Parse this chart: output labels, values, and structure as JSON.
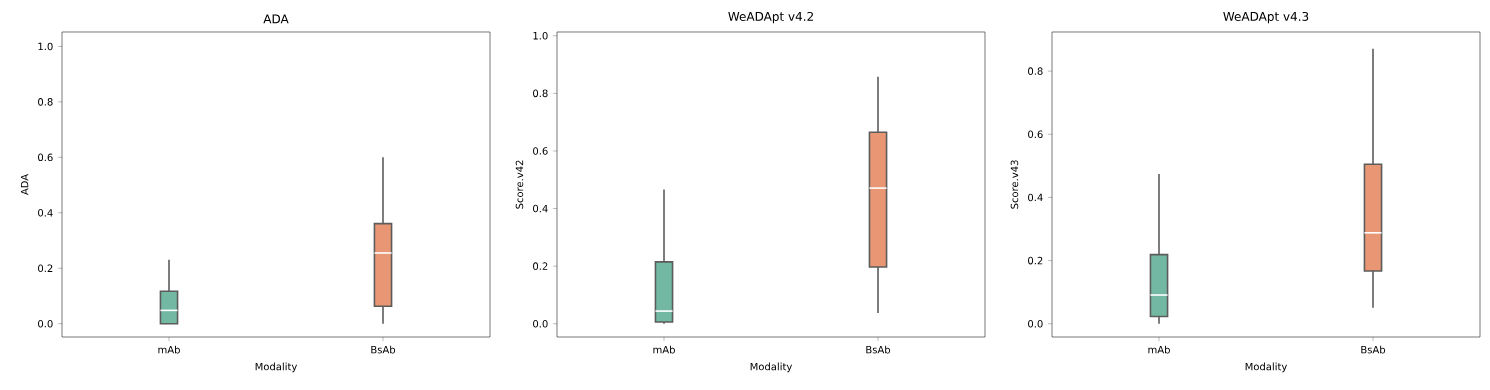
{
  "chart_data": [
    {
      "type": "box",
      "title": "ADA",
      "xlabel": "Modality",
      "ylabel": "ADA",
      "categories": [
        "mAb",
        "BsAb"
      ],
      "colors": [
        "#73b8a2",
        "#e89673"
      ],
      "boxes": [
        {
          "low": 0,
          "q1": 0,
          "median": 0.048,
          "q3": 0.117,
          "high": 0.231
        },
        {
          "low": 0,
          "q1": 0.063,
          "median": 0.255,
          "q3": 0.361,
          "high": 0.6
        }
      ],
      "ylim": [
        -0.048,
        1.052
      ],
      "yticks": [
        {
          "value": 0,
          "label": "0.0"
        },
        {
          "value": 0.2,
          "label": "0.2"
        },
        {
          "value": 0.4,
          "label": "0.4"
        },
        {
          "value": 0.6,
          "label": "0.6"
        },
        {
          "value": 0.8,
          "label": "0.8"
        },
        {
          "value": 1.0,
          "label": "1.0"
        }
      ]
    },
    {
      "type": "box",
      "title": "WeADApt v4.2",
      "xlabel": "Modality",
      "ylabel": "Score.v42",
      "categories": [
        "mAb",
        "BsAb"
      ],
      "colors": [
        "#73b8a2",
        "#e89673"
      ],
      "boxes": [
        {
          "low": 0,
          "q1": 0.006,
          "median": 0.044,
          "q3": 0.215,
          "high": 0.466
        },
        {
          "low": 0.037,
          "q1": 0.197,
          "median": 0.471,
          "q3": 0.665,
          "high": 0.858
        }
      ],
      "ylim": [
        -0.046,
        1.013
      ],
      "yticks": [
        {
          "value": 0,
          "label": "0.0"
        },
        {
          "value": 0.2,
          "label": "0.2"
        },
        {
          "value": 0.4,
          "label": "0.4"
        },
        {
          "value": 0.6,
          "label": "0.6"
        },
        {
          "value": 0.8,
          "label": "0.8"
        },
        {
          "value": 1.0,
          "label": "1.0"
        }
      ]
    },
    {
      "type": "box",
      "title": "WeADApt v4.3",
      "xlabel": "Modality",
      "ylabel": "Score.v43",
      "categories": [
        "mAb",
        "BsAb"
      ],
      "colors": [
        "#73b8a2",
        "#e89673"
      ],
      "boxes": [
        {
          "low": 0,
          "q1": 0.023,
          "median": 0.091,
          "q3": 0.219,
          "high": 0.474
        },
        {
          "low": 0.051,
          "q1": 0.167,
          "median": 0.288,
          "q3": 0.505,
          "high": 0.871
        }
      ],
      "ylim": [
        -0.042,
        0.924
      ],
      "yticks": [
        {
          "value": 0,
          "label": "0.0"
        },
        {
          "value": 0.2,
          "label": "0.2"
        },
        {
          "value": 0.4,
          "label": "0.4"
        },
        {
          "value": 0.6,
          "label": "0.6"
        },
        {
          "value": 0.8,
          "label": "0.8"
        }
      ]
    }
  ]
}
